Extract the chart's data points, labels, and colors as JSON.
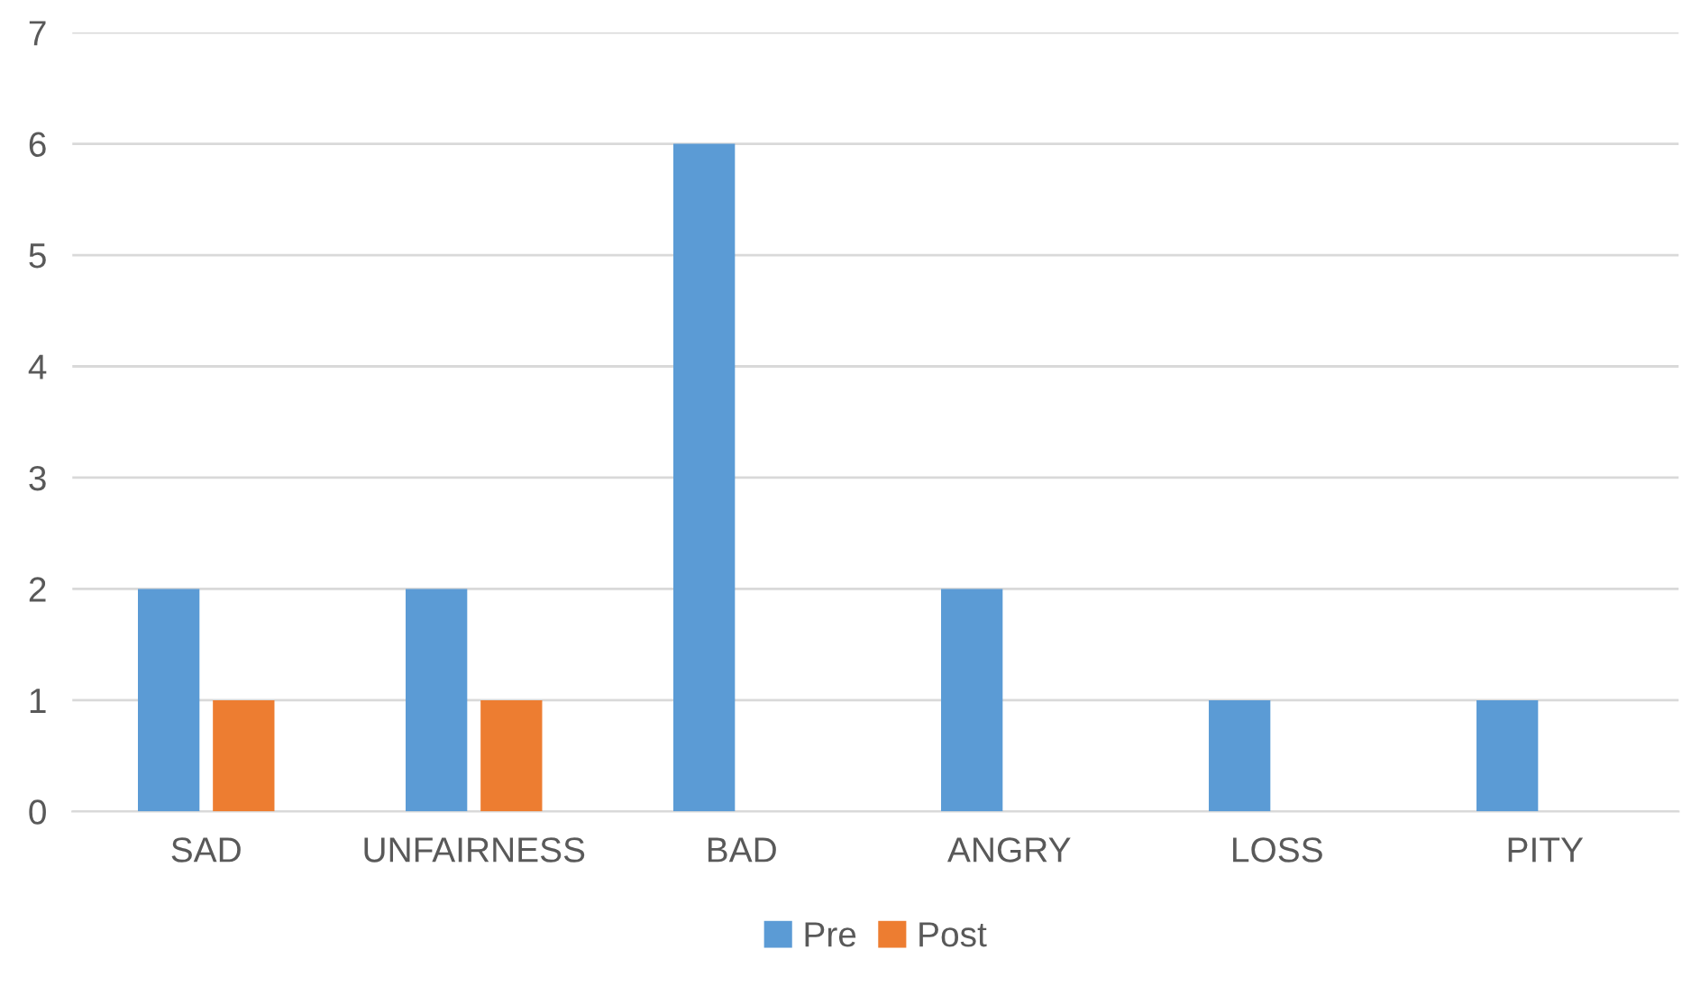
{
  "chart_data": {
    "type": "bar",
    "categories": [
      "SAD",
      "UNFAIRNESS",
      "BAD",
      "ANGRY",
      "LOSS",
      "PITY"
    ],
    "series": [
      {
        "name": "Pre",
        "color": "#5b9bd5",
        "values": [
          2,
          2,
          6,
          2,
          1,
          1
        ]
      },
      {
        "name": "Post",
        "color": "#ed7d31",
        "values": [
          1,
          1,
          0,
          0,
          0,
          0
        ]
      }
    ],
    "ylim": [
      0,
      7
    ],
    "yticks": [
      0,
      1,
      2,
      3,
      4,
      5,
      6,
      7
    ],
    "grid": "y",
    "legend": "bottom"
  }
}
